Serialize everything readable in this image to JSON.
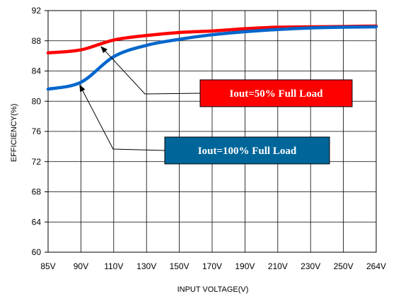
{
  "chart_data": {
    "type": "line",
    "xlabel": "INPUT VOLTAGE(V)",
    "ylabel": "EFFICIENCY(%)",
    "x_ticks": [
      "85V",
      "90V",
      "110V",
      "130V",
      "150V",
      "170V",
      "190V",
      "210V",
      "230V",
      "250V",
      "264V"
    ],
    "y_ticks": [
      "60",
      "64",
      "68",
      "72",
      "76",
      "80",
      "84",
      "88",
      "92"
    ],
    "ylim": [
      60,
      92
    ],
    "grid": true,
    "series": [
      {
        "name": "Iout=50% Full Load",
        "color": "#ff0000",
        "x": [
          "85V",
          "90V",
          "110V",
          "130V",
          "150V",
          "170V",
          "190V",
          "210V",
          "230V",
          "250V",
          "264V"
        ],
        "values": [
          86.4,
          86.8,
          88.1,
          88.7,
          89.1,
          89.3,
          89.6,
          89.8,
          89.85,
          89.9,
          89.95
        ]
      },
      {
        "name": "Iout=100% Full Load",
        "color": "#0066cc",
        "x": [
          "85V",
          "90V",
          "110V",
          "130V",
          "150V",
          "170V",
          "190V",
          "210V",
          "230V",
          "250V",
          "264V"
        ],
        "values": [
          81.6,
          82.5,
          85.9,
          87.4,
          88.2,
          88.8,
          89.2,
          89.5,
          89.7,
          89.8,
          89.85
        ]
      }
    ],
    "annotations": [
      {
        "text": "Iout=50% Full Load",
        "fill": "#ff0000",
        "points_to": "Iout=50% Full Load"
      },
      {
        "text": "Iout=100% Full Load",
        "fill": "#006699",
        "points_to": "Iout=100% Full Load"
      }
    ]
  }
}
